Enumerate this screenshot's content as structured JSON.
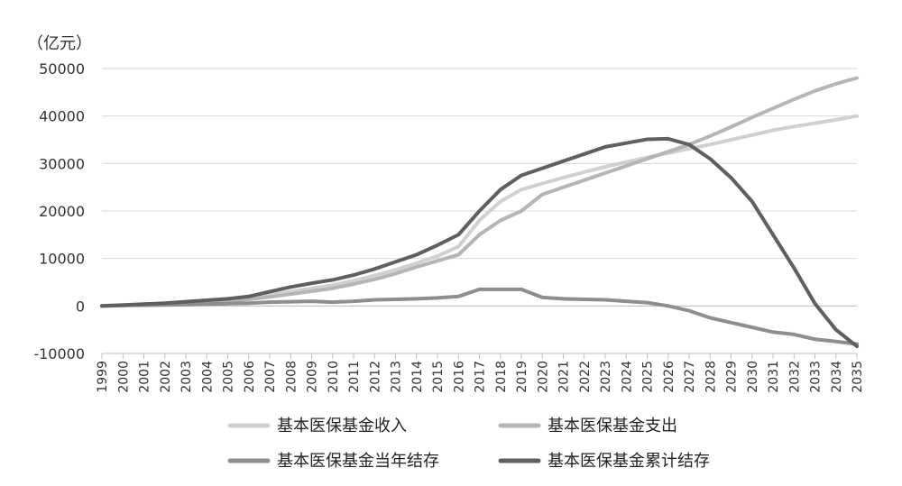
{
  "chart_data": {
    "type": "line",
    "unit_label": "（亿元）",
    "x": [
      "1999",
      "2000",
      "2001",
      "2002",
      "2003",
      "2004",
      "2005",
      "2006",
      "2007",
      "2008",
      "2009",
      "2010",
      "2011",
      "2012",
      "2013",
      "2014",
      "2015",
      "2016",
      "2017",
      "2018",
      "2019",
      "2020",
      "2021",
      "2022",
      "2023",
      "2024",
      "2025",
      "2026",
      "2027",
      "2028",
      "2029",
      "2030",
      "2031",
      "2032",
      "2033",
      "2034",
      "2035"
    ],
    "ylim": [
      -10000,
      50000
    ],
    "yticks": [
      "50000",
      "40000",
      "30000",
      "20000",
      "10000",
      "0",
      "-10000"
    ],
    "ytick_values": [
      50000,
      40000,
      30000,
      20000,
      10000,
      0,
      -10000
    ],
    "grid": true,
    "legend_position": "bottom",
    "series": [
      {
        "name": "基本医保基金收入",
        "color": "#d0d0d0",
        "values": [
          0,
          100,
          300,
          500,
          800,
          1000,
          1200,
          1700,
          2300,
          3000,
          3700,
          4400,
          5300,
          6400,
          7600,
          9000,
          10500,
          12500,
          18000,
          22000,
          24500,
          25800,
          27000,
          28200,
          29300,
          30300,
          31300,
          32200,
          33100,
          34000,
          35000,
          36000,
          37000,
          37800,
          38500,
          39200,
          40000
        ]
      },
      {
        "name": "基本医保基金支出",
        "color": "#b5b5b5",
        "values": [
          0,
          100,
          300,
          400,
          600,
          800,
          1000,
          1400,
          1900,
          2500,
          3100,
          3700,
          4600,
          5600,
          6800,
          8200,
          9500,
          10800,
          15000,
          18000,
          20000,
          23500,
          25000,
          26500,
          28000,
          29500,
          31000,
          32500,
          34000,
          35800,
          37700,
          39700,
          41600,
          43500,
          45300,
          46800,
          48000
        ]
      },
      {
        "name": "基本医保基金当年结存",
        "color": "#8e8e8e",
        "values": [
          0,
          100,
          150,
          200,
          300,
          400,
          500,
          600,
          800,
          900,
          1000,
          800,
          1000,
          1300,
          1400,
          1500,
          1700,
          2000,
          3500,
          3500,
          3500,
          1800,
          1500,
          1400,
          1300,
          1000,
          700,
          0,
          -1000,
          -2500,
          -3500,
          -4500,
          -5500,
          -6000,
          -7000,
          -7500,
          -8000
        ]
      },
      {
        "name": "基本医保基金累计结存",
        "color": "#5f5f5f",
        "values": [
          0,
          200,
          400,
          600,
          900,
          1200,
          1500,
          2000,
          3000,
          4000,
          4800,
          5500,
          6500,
          7800,
          9300,
          10800,
          12800,
          15000,
          20000,
          24500,
          27500,
          29000,
          30500,
          32000,
          33500,
          34300,
          35100,
          35200,
          34000,
          31000,
          27000,
          22000,
          15000,
          8000,
          500,
          -5000,
          -8500
        ]
      }
    ]
  }
}
